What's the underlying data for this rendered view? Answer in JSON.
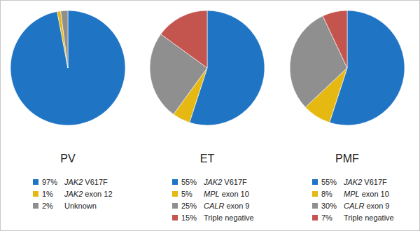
{
  "chart_data": [
    {
      "type": "pie",
      "title": "PV",
      "categories": [
        "JAK2 V617F",
        "JAK2 exon 12",
        "Unknown"
      ],
      "values": [
        97,
        1,
        2
      ],
      "value_labels": [
        "97%",
        "1%",
        "2%"
      ],
      "colors": [
        "#1f74c4",
        "#e6b812",
        "#8f8f8f"
      ]
    },
    {
      "type": "pie",
      "title": "ET",
      "categories": [
        "JAK2 V617F",
        "MPL exon 10",
        "CALR exon 9",
        "Triple negative"
      ],
      "values": [
        55,
        5,
        25,
        15
      ],
      "value_labels": [
        "55%",
        "5%",
        "25%",
        "15%"
      ],
      "colors": [
        "#1f74c4",
        "#e6b812",
        "#8f8f8f",
        "#c4544e"
      ]
    },
    {
      "type": "pie",
      "title": "PMF",
      "categories": [
        "JAK2 V617F",
        "MPL exon 10",
        "CALR exon 9",
        "Triple negative"
      ],
      "values": [
        55,
        8,
        30,
        7
      ],
      "value_labels": [
        "55%",
        "8%",
        "30%",
        "7%"
      ],
      "colors": [
        "#1f74c4",
        "#e6b812",
        "#8f8f8f",
        "#c4544e"
      ]
    }
  ]
}
